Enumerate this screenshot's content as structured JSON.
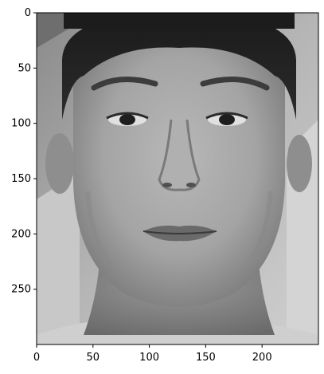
{
  "figure": {
    "image_description_hidden": "",
    "x_axis": {
      "ticks": [
        0,
        50,
        100,
        150,
        200
      ],
      "range": [
        0,
        250
      ]
    },
    "y_axis": {
      "ticks": [
        0,
        50,
        100,
        150,
        200,
        250
      ],
      "range": [
        0,
        300
      ],
      "inverted": true
    },
    "colormap": "gray"
  }
}
